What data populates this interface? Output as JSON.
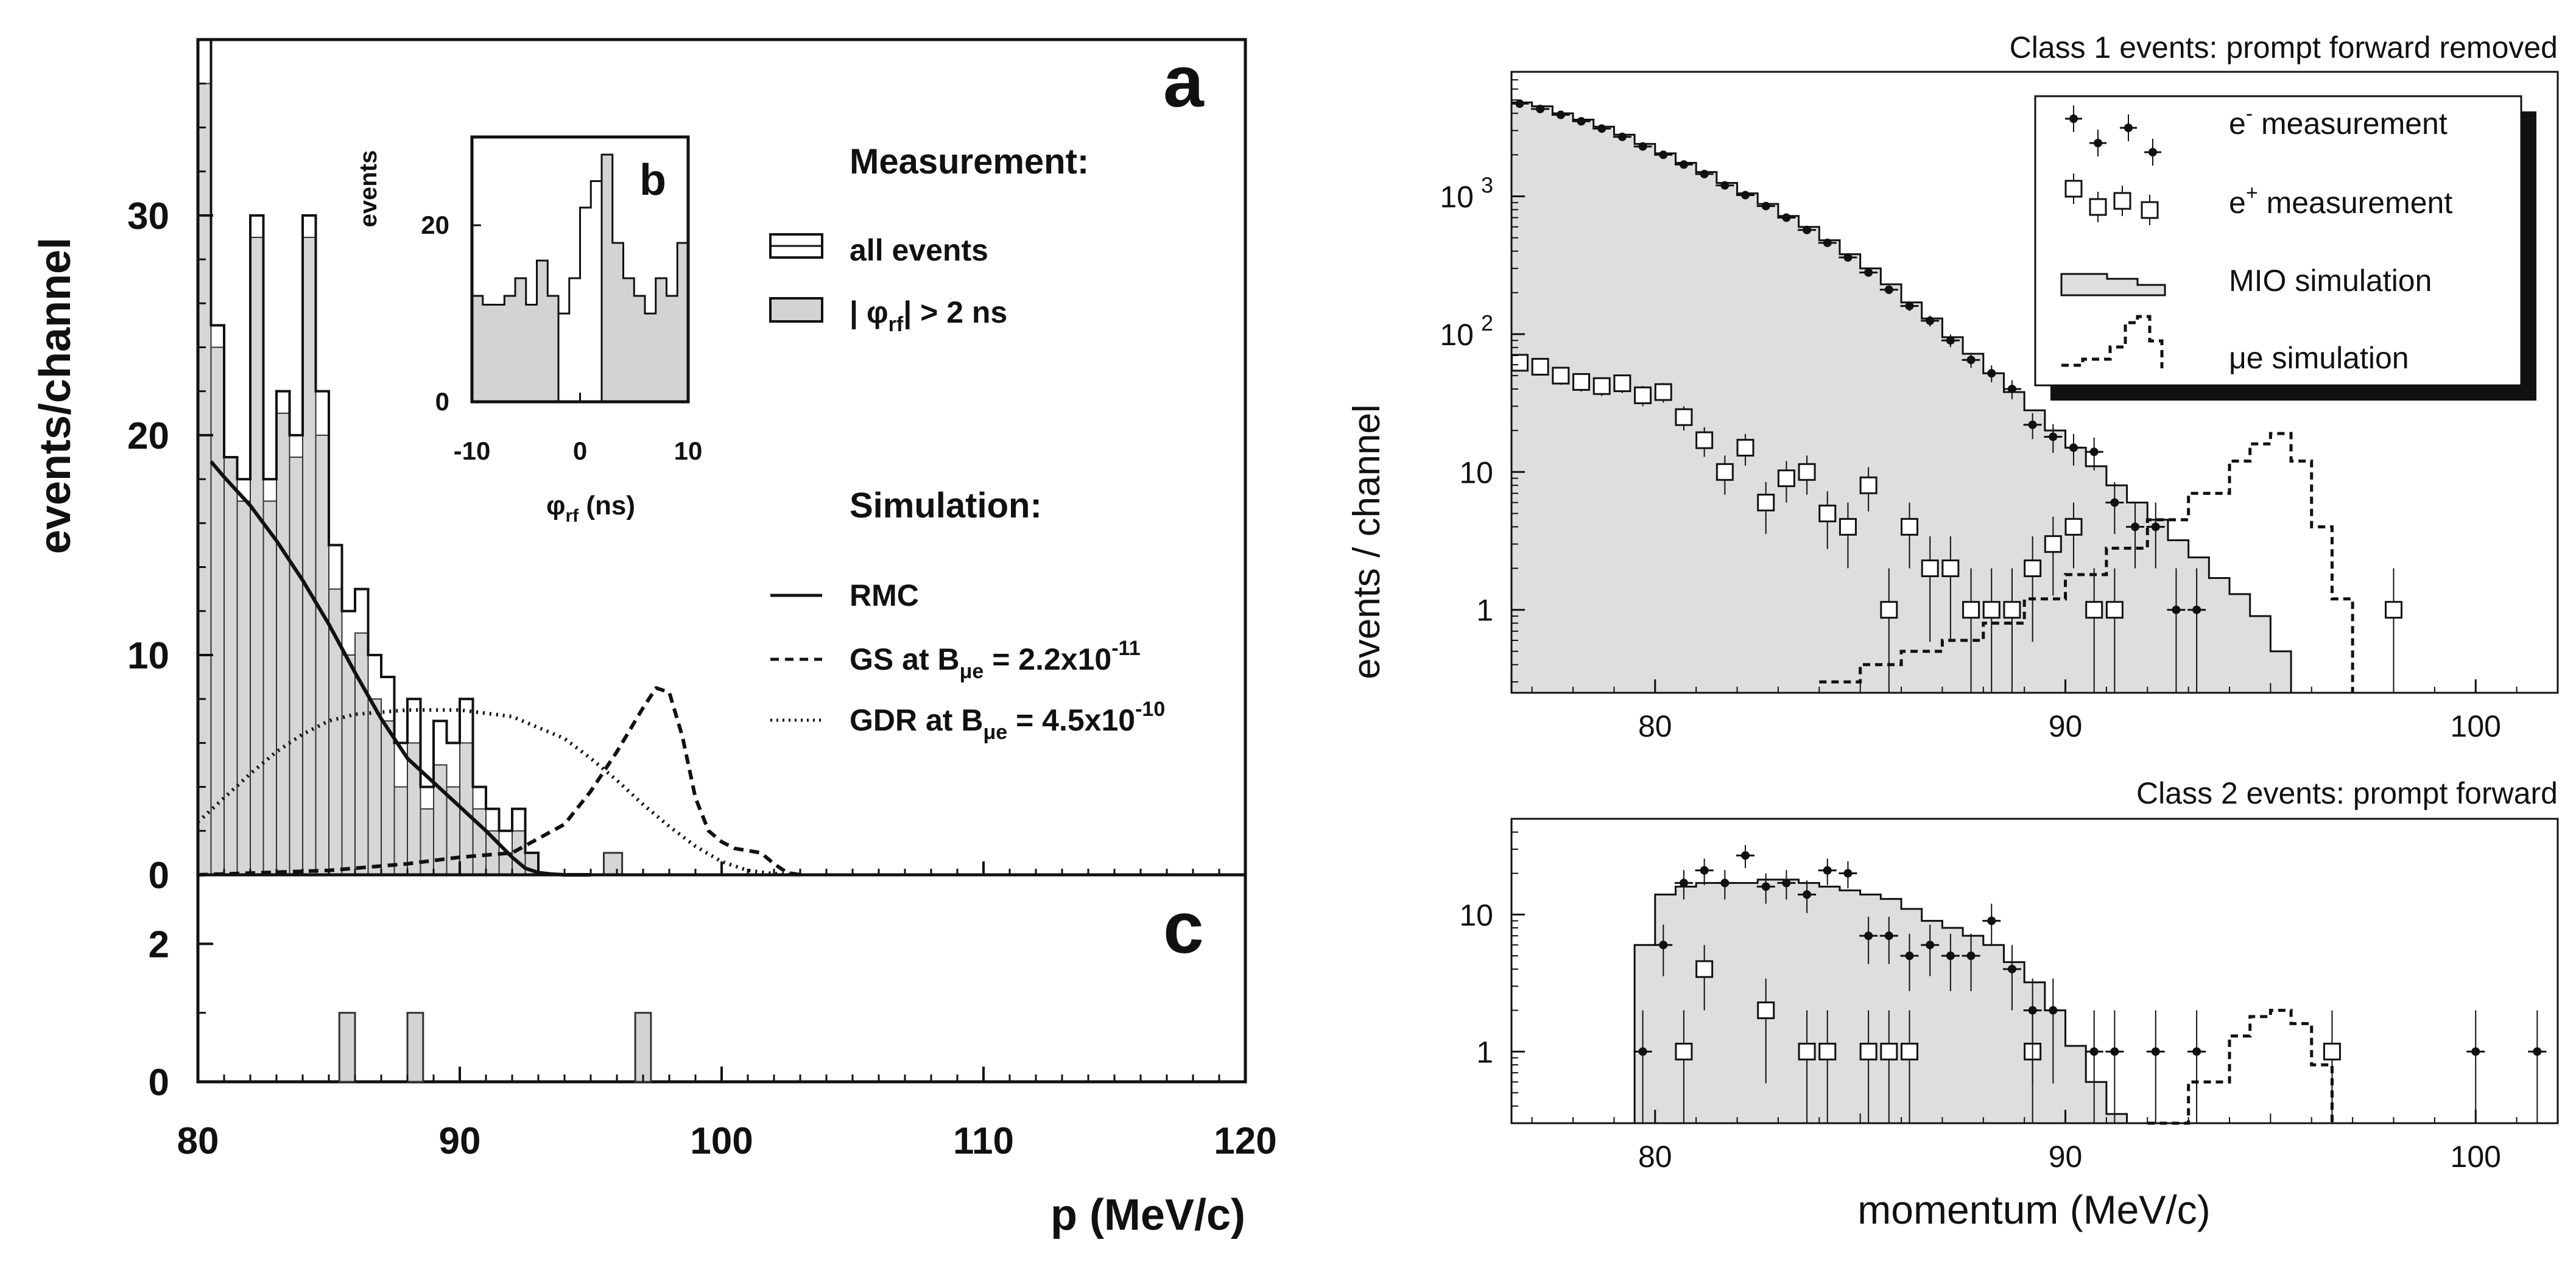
{
  "chart_data": [
    {
      "panel": "a",
      "type": "histogram",
      "panel_letter": "a",
      "xlabel": "p (MeV/c)",
      "ylabel": "events/channel",
      "xlim": [
        80,
        120
      ],
      "ylim": [
        0,
        38
      ],
      "xticks": [
        80,
        90,
        100,
        110,
        120
      ],
      "yticks": [
        0,
        10,
        20,
        30
      ],
      "bin_edges": [
        80,
        80.5,
        81,
        81.5,
        82,
        82.5,
        83,
        83.5,
        84,
        84.5,
        85,
        85.5,
        86,
        86.5,
        87,
        87.5,
        88,
        88.5,
        89,
        89.5,
        90,
        90.5,
        91,
        91.5,
        92,
        92.5,
        93
      ],
      "all_events": [
        38,
        25,
        19,
        18,
        30,
        18,
        22,
        20,
        30,
        22,
        15,
        12,
        13,
        10,
        9,
        6,
        8,
        4,
        7,
        6,
        8,
        4,
        3,
        2,
        3,
        1,
        0
      ],
      "phi_rf_gt_2ns": [
        36,
        24,
        19,
        17,
        29,
        17,
        21,
        19,
        29,
        20,
        13,
        10,
        11,
        8,
        7,
        4,
        6,
        3,
        5,
        4,
        6,
        3,
        2,
        1,
        2,
        1,
        0
      ],
      "extra_bins": [
        {
          "x0": 95.5,
          "x1": 96.2,
          "value": 1
        }
      ],
      "legend": {
        "measurement_title": "Measurement:",
        "all_events": "all events",
        "phi_rf": "| φ",
        "phi_rf_sub": "rf",
        "phi_rf_tail": "| > 2 ns",
        "simulation_title": "Simulation:",
        "rmc": "RMC",
        "gs_prefix": "GS at B",
        "gs_sub": "μe",
        "gs_mid": " = 2.2x10",
        "gs_exp": "-11",
        "gdr_prefix": "GDR at B",
        "gdr_sub": "μe",
        "gdr_mid": " = 4.5x10",
        "gdr_exp": "-10"
      },
      "curves": {
        "RMC": {
          "style": "solid",
          "x": [
            80.5,
            81,
            82,
            83,
            84,
            85,
            86,
            87,
            88,
            89,
            90,
            91,
            92,
            92.5,
            93,
            93.5,
            94,
            95
          ],
          "y": [
            18.8,
            18.1,
            16.8,
            15.2,
            13.4,
            11.4,
            9.2,
            7.1,
            5.3,
            4.2,
            3.1,
            2,
            0.8,
            0.3,
            0.1,
            0.03,
            0,
            0
          ]
        },
        "GS": {
          "style": "dashed",
          "x": [
            80,
            85,
            88,
            90,
            92,
            94,
            95,
            96,
            97,
            97.5,
            98,
            98.5,
            99,
            99.5,
            100,
            100.5,
            101,
            101.5,
            102,
            102.5,
            103
          ],
          "y": [
            0,
            0.2,
            0.5,
            0.8,
            1,
            2.3,
            3.8,
            5.6,
            7.6,
            8.5,
            8.3,
            6.3,
            3.5,
            2,
            1.5,
            1.2,
            1.1,
            1,
            0.5,
            0.1,
            0
          ]
        },
        "GDR": {
          "style": "dotted",
          "x": [
            80,
            81,
            82,
            83,
            84,
            85,
            86,
            88,
            90,
            92,
            94,
            95,
            96,
            97,
            98,
            99,
            100,
            101,
            102,
            103
          ],
          "y": [
            2.4,
            3.5,
            4.6,
            5.6,
            6.4,
            7,
            7.3,
            7.5,
            7.5,
            7.2,
            6.2,
            5.3,
            4.3,
            3.2,
            2.2,
            1.3,
            0.6,
            0.2,
            0.05,
            0
          ]
        }
      }
    },
    {
      "panel": "b",
      "type": "histogram",
      "panel_letter": "b",
      "xlabel": "φ",
      "xlabel_sub": "rf",
      "xlabel_tail": " (ns)",
      "ylabel": "events",
      "xlim": [
        -10,
        10
      ],
      "ylim": [
        0,
        30
      ],
      "xticks": [
        -10,
        0,
        10
      ],
      "yticks": [
        0,
        20
      ],
      "bin_edges": [
        -10,
        -9,
        -8,
        -7,
        -6,
        -5,
        -4,
        -3,
        -2,
        -1,
        0,
        1,
        2,
        3,
        4,
        5,
        6,
        7,
        8,
        9,
        10
      ],
      "values": [
        12,
        11,
        11,
        12,
        14,
        11,
        16,
        12,
        10,
        14,
        22,
        25,
        28,
        18,
        14,
        12,
        10,
        14,
        12,
        18
      ],
      "shaded_from": [
        -10,
        -2
      ],
      "shaded_to": [
        2,
        10
      ]
    },
    {
      "panel": "c",
      "type": "bar",
      "panel_letter": "c",
      "xlim": [
        80,
        120
      ],
      "ylim": [
        0,
        3
      ],
      "yticks": [
        0,
        2
      ],
      "bars": [
        {
          "x0": 85.4,
          "x1": 86.0,
          "value": 1
        },
        {
          "x0": 88.0,
          "x1": 88.6,
          "value": 1
        },
        {
          "x0": 96.7,
          "x1": 97.3,
          "value": 1
        }
      ]
    },
    {
      "panel": "class1",
      "type": "histogram",
      "title": "Class 1 events: prompt forward removed",
      "ylabel": "events / channel",
      "yscale": "log",
      "xlim": [
        76.5,
        102
      ],
      "ylim": [
        0.25,
        8000
      ],
      "xticks": [
        80,
        90,
        100
      ],
      "yticks": [
        {
          "value": 1,
          "label": "1"
        },
        {
          "value": 10,
          "label": "10"
        },
        {
          "value": 100,
          "label": "10",
          "sup": "2"
        },
        {
          "value": 1000,
          "label": "10",
          "sup": "3"
        }
      ],
      "mio_bin_width": 0.5,
      "mio_x0": 76.5,
      "mio_simulation": [
        4800,
        4500,
        4000,
        3600,
        3200,
        2800,
        2400,
        2050,
        1750,
        1500,
        1250,
        1050,
        880,
        720,
        600,
        480,
        380,
        300,
        230,
        170,
        130,
        95,
        72,
        52,
        38,
        28,
        20,
        15,
        11,
        8,
        6,
        4.5,
        3.2,
        2.4,
        1.7,
        1.3,
        0.9,
        0.5
      ],
      "e_minus_measurement": [
        {
          "x": 76.7,
          "y": 4700
        },
        {
          "x": 77.2,
          "y": 4300
        },
        {
          "x": 77.7,
          "y": 3900
        },
        {
          "x": 78.2,
          "y": 3500
        },
        {
          "x": 78.7,
          "y": 3100
        },
        {
          "x": 79.2,
          "y": 2700
        },
        {
          "x": 79.7,
          "y": 2300
        },
        {
          "x": 80.2,
          "y": 2000
        },
        {
          "x": 80.7,
          "y": 1700
        },
        {
          "x": 81.2,
          "y": 1450
        },
        {
          "x": 81.7,
          "y": 1200
        },
        {
          "x": 82.2,
          "y": 1020
        },
        {
          "x": 82.7,
          "y": 850
        },
        {
          "x": 83.2,
          "y": 700
        },
        {
          "x": 83.7,
          "y": 570
        },
        {
          "x": 84.2,
          "y": 460
        },
        {
          "x": 84.7,
          "y": 360
        },
        {
          "x": 85.2,
          "y": 280
        },
        {
          "x": 85.7,
          "y": 210
        },
        {
          "x": 86.2,
          "y": 160
        },
        {
          "x": 86.7,
          "y": 125
        },
        {
          "x": 87.2,
          "y": 90
        },
        {
          "x": 87.7,
          "y": 65
        },
        {
          "x": 88.2,
          "y": 52
        },
        {
          "x": 88.7,
          "y": 40
        },
        {
          "x": 89.2,
          "y": 22
        },
        {
          "x": 89.7,
          "y": 18
        },
        {
          "x": 90.2,
          "y": 15
        },
        {
          "x": 90.7,
          "y": 14
        },
        {
          "x": 91.2,
          "y": 6
        },
        {
          "x": 91.7,
          "y": 4
        },
        {
          "x": 92.2,
          "y": 4
        },
        {
          "x": 92.7,
          "y": 1
        },
        {
          "x": 93.2,
          "y": 1
        }
      ],
      "e_plus_measurement": [
        {
          "x": 76.7,
          "y": 62
        },
        {
          "x": 77.2,
          "y": 58
        },
        {
          "x": 77.7,
          "y": 50
        },
        {
          "x": 78.2,
          "y": 45
        },
        {
          "x": 78.7,
          "y": 42
        },
        {
          "x": 79.2,
          "y": 44
        },
        {
          "x": 79.7,
          "y": 36
        },
        {
          "x": 80.2,
          "y": 38
        },
        {
          "x": 80.7,
          "y": 25
        },
        {
          "x": 81.2,
          "y": 17
        },
        {
          "x": 81.7,
          "y": 10
        },
        {
          "x": 82.2,
          "y": 15
        },
        {
          "x": 82.7,
          "y": 6
        },
        {
          "x": 83.2,
          "y": 9
        },
        {
          "x": 83.7,
          "y": 10
        },
        {
          "x": 84.2,
          "y": 5
        },
        {
          "x": 84.7,
          "y": 4
        },
        {
          "x": 85.2,
          "y": 8
        },
        {
          "x": 85.7,
          "y": 1
        },
        {
          "x": 86.2,
          "y": 4
        },
        {
          "x": 86.7,
          "y": 2
        },
        {
          "x": 87.2,
          "y": 2
        },
        {
          "x": 87.7,
          "y": 1
        },
        {
          "x": 88.2,
          "y": 1
        },
        {
          "x": 88.7,
          "y": 1
        },
        {
          "x": 89.2,
          "y": 2
        },
        {
          "x": 89.7,
          "y": 3
        },
        {
          "x": 90.2,
          "y": 4
        },
        {
          "x": 90.7,
          "y": 1
        },
        {
          "x": 91.2,
          "y": 1
        },
        {
          "x": 98.0,
          "y": 1
        }
      ],
      "mue_simulation": {
        "x": [
          84,
          85,
          86,
          87,
          88,
          89,
          90,
          91,
          92,
          93,
          94,
          94.5,
          95,
          95.5,
          96,
          96.5,
          97
        ],
        "y": [
          0.3,
          0.4,
          0.5,
          0.6,
          0.8,
          1.2,
          1.8,
          2.8,
          4.5,
          7,
          12,
          16,
          19,
          12,
          4,
          1.2,
          0.25
        ]
      },
      "legend": {
        "e_minus": "e",
        "e_minus_sup": "-",
        "e_minus_tail": " measurement",
        "e_plus": "e",
        "e_plus_sup": "+",
        "e_plus_tail": " measurement",
        "mio": "MIO simulation",
        "mue": "μe simulation"
      }
    },
    {
      "panel": "class2",
      "type": "histogram",
      "title": "Class 2 events: prompt forward",
      "xlabel": "momentum  (MeV/c)",
      "yscale": "log",
      "xlim": [
        76.5,
        102
      ],
      "ylim": [
        0.3,
        50
      ],
      "xticks": [
        80,
        90,
        100
      ],
      "yticks": [
        {
          "value": 1,
          "label": "1"
        },
        {
          "value": 10,
          "label": "10"
        }
      ],
      "mio_bin_width": 0.5,
      "mio_x0": 79.5,
      "mio_simulation": [
        6,
        14,
        16,
        17,
        17,
        17,
        18,
        18,
        17,
        16,
        15,
        14,
        13,
        11,
        9,
        8,
        7,
        6,
        4.5,
        3.2,
        2,
        1.1,
        0.6,
        0.35
      ],
      "e_minus_measurement": [
        {
          "x": 79.7,
          "y": 1
        },
        {
          "x": 80.2,
          "y": 6
        },
        {
          "x": 80.7,
          "y": 17
        },
        {
          "x": 81.2,
          "y": 21
        },
        {
          "x": 81.7,
          "y": 17
        },
        {
          "x": 82.2,
          "y": 27
        },
        {
          "x": 82.7,
          "y": 16
        },
        {
          "x": 83.2,
          "y": 17
        },
        {
          "x": 83.7,
          "y": 14
        },
        {
          "x": 84.2,
          "y": 21
        },
        {
          "x": 84.7,
          "y": 20
        },
        {
          "x": 85.2,
          "y": 7
        },
        {
          "x": 85.7,
          "y": 7
        },
        {
          "x": 86.2,
          "y": 5
        },
        {
          "x": 86.7,
          "y": 6
        },
        {
          "x": 87.2,
          "y": 5
        },
        {
          "x": 87.7,
          "y": 5
        },
        {
          "x": 88.2,
          "y": 9
        },
        {
          "x": 88.7,
          "y": 4
        },
        {
          "x": 89.2,
          "y": 2
        },
        {
          "x": 89.7,
          "y": 2
        },
        {
          "x": 90.7,
          "y": 1
        },
        {
          "x": 91.2,
          "y": 1
        },
        {
          "x": 92.2,
          "y": 1
        },
        {
          "x": 93.2,
          "y": 1
        },
        {
          "x": 100.0,
          "y": 1
        },
        {
          "x": 101.5,
          "y": 1
        }
      ],
      "e_plus_measurement": [
        {
          "x": 80.7,
          "y": 1
        },
        {
          "x": 81.2,
          "y": 4
        },
        {
          "x": 82.7,
          "y": 2
        },
        {
          "x": 83.7,
          "y": 1
        },
        {
          "x": 84.2,
          "y": 1
        },
        {
          "x": 85.2,
          "y": 1
        },
        {
          "x": 85.7,
          "y": 1
        },
        {
          "x": 86.2,
          "y": 1
        },
        {
          "x": 89.2,
          "y": 1
        },
        {
          "x": 96.5,
          "y": 1
        }
      ],
      "mue_simulation": {
        "x": [
          92,
          93,
          94,
          94.5,
          95,
          95.5,
          96,
          96.5
        ],
        "y": [
          0.3,
          0.6,
          1.3,
          1.8,
          2,
          1.6,
          0.8,
          0.3
        ]
      }
    }
  ]
}
